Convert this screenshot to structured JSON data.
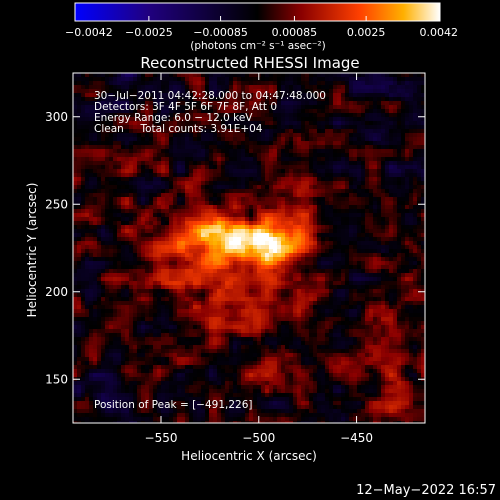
{
  "chart_data": {
    "type": "heatmap",
    "title": "Reconstructed RHESSI Image",
    "xlabel": "Heliocentric X (arcsec)",
    "ylabel": "Heliocentric Y (arcsec)",
    "xlim": [
      -595,
      -415
    ],
    "ylim": [
      125,
      325
    ],
    "x_ticks": [
      -550,
      -500,
      -450
    ],
    "x_tick_labels": [
      "−550",
      "−500",
      "−450"
    ],
    "y_ticks": [
      150,
      200,
      250,
      300
    ],
    "y_tick_labels": [
      "150",
      "200",
      "250",
      "300"
    ],
    "colorbar": {
      "range": [
        -0.0042,
        0.0042
      ],
      "ticks": [
        -0.0042,
        -0.0025,
        -0.00085,
        0.00085,
        0.0025,
        0.0042
      ],
      "tick_labels": [
        "−0.0042",
        "−0.0025",
        "−0.00085",
        "0.00085",
        "0.0025",
        "0.0042"
      ],
      "units": "(photons cm⁻² s⁻¹ asec⁻²)",
      "colors": [
        "#0000ff",
        "#200080",
        "#000000",
        "#8a0000",
        "#ff4000",
        "#ffb000",
        "#ffffff"
      ]
    },
    "annotations": [
      "30−Jul−2011 04:42:28.000 to 04:47:48.000",
      "Detectors: 3F 4F 5F 6F 7F 8F, Att 0",
      "Energy Range: 6.0 − 12.0 keV",
      "Clean     Total counts: 3.91E+04"
    ],
    "peak_label": "Position of Peak = [−491,226]",
    "peak": {
      "x": -491,
      "y": 226,
      "value": 0.0042
    },
    "sources": [
      {
        "x": -491,
        "y": 226,
        "sx": 11,
        "sy": 8,
        "amp": 0.0042
      },
      {
        "x": -518,
        "y": 232,
        "sx": 14,
        "sy": 10,
        "amp": 0.0024
      },
      {
        "x": -536,
        "y": 217,
        "sx": 24,
        "sy": 20,
        "amp": 0.0013
      },
      {
        "x": -478,
        "y": 248,
        "sx": 14,
        "sy": 12,
        "amp": 0.001
      },
      {
        "x": -503,
        "y": 196,
        "sx": 20,
        "sy": 14,
        "amp": 0.0009
      },
      {
        "x": -434,
        "y": 150,
        "sx": 10,
        "sy": 34,
        "amp": 0.001
      },
      {
        "x": -575,
        "y": 272,
        "sx": 10,
        "sy": 12,
        "amp": 0.0007
      },
      {
        "x": -497,
        "y": 158,
        "sx": 16,
        "sy": 14,
        "amp": 0.0006
      },
      {
        "x": -540,
        "y": 165,
        "sx": 12,
        "sy": 10,
        "amp": 0.0005
      },
      {
        "x": -565,
        "y": 320,
        "sx": 14,
        "sy": 8,
        "amp": -0.0009
      },
      {
        "x": -440,
        "y": 320,
        "sx": 12,
        "sy": 10,
        "amp": -0.0008
      },
      {
        "x": -580,
        "y": 140,
        "sx": 10,
        "sy": 12,
        "amp": -0.0007
      },
      {
        "x": -430,
        "y": 270,
        "sx": 10,
        "sy": 20,
        "amp": -0.0006
      }
    ]
  },
  "footer": {
    "timestamp": "12−May−2022 16:57"
  }
}
